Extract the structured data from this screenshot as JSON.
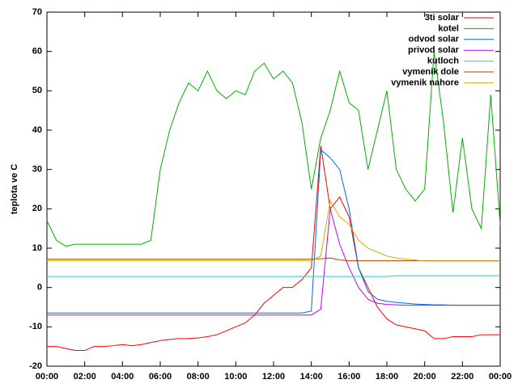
{
  "chart_data": {
    "type": "line",
    "y_label": "teplota ve C",
    "x": [
      0,
      0.5,
      1,
      1.5,
      2,
      2.5,
      3,
      3.5,
      4,
      4.5,
      5,
      5.5,
      6,
      6.5,
      7,
      7.5,
      8,
      8.5,
      9,
      9.5,
      10,
      10.5,
      11,
      11.5,
      12,
      12.5,
      13,
      13.5,
      14,
      14.5,
      15,
      15.5,
      16,
      16.5,
      17,
      17.5,
      18,
      18.5,
      19,
      19.5,
      20,
      20.5,
      21,
      21.5,
      22,
      22.5,
      23,
      23.5,
      24
    ],
    "xlim": [
      0,
      24
    ],
    "xticks": [
      {
        "value": 0,
        "label": "00:00"
      },
      {
        "value": 2,
        "label": "02:00"
      },
      {
        "value": 4,
        "label": "04:00"
      },
      {
        "value": 6,
        "label": "06:00"
      },
      {
        "value": 8,
        "label": "08:00"
      },
      {
        "value": 10,
        "label": "10:00"
      },
      {
        "value": 12,
        "label": "12:00"
      },
      {
        "value": 14,
        "label": "14:00"
      },
      {
        "value": 16,
        "label": "16:00"
      },
      {
        "value": 18,
        "label": "18:00"
      },
      {
        "value": 20,
        "label": "20:00"
      },
      {
        "value": 22,
        "label": "22:00"
      },
      {
        "value": 24,
        "label": "00:00"
      }
    ],
    "ylim": [
      -20,
      70
    ],
    "yticks": [
      -20,
      -10,
      0,
      10,
      20,
      30,
      40,
      50,
      60,
      70
    ],
    "grid": false,
    "legend": "top-right",
    "series": [
      {
        "name": "3ti solar",
        "color": "#ff0000",
        "values": [
          -15,
          -15,
          -15.5,
          -16,
          -16,
          -15,
          -15,
          -14.8,
          -14.5,
          -14.8,
          -14.5,
          -14,
          -13.5,
          -13.2,
          -13,
          -13,
          -12.8,
          -12.5,
          -12,
          -11,
          -10,
          -9,
          -7,
          -4,
          -2,
          0,
          0,
          2,
          5,
          36,
          20,
          23,
          18,
          5,
          0,
          -5,
          -8,
          -9.5,
          -10,
          -10.5,
          -11,
          -13,
          -13,
          -12.5,
          -12.5,
          -12.5,
          -12,
          -12,
          -12
        ]
      },
      {
        "name": "kotel",
        "color": "#00b000",
        "values": [
          17,
          12,
          10.5,
          11,
          11,
          11,
          11,
          11,
          11,
          11,
          11,
          12,
          30,
          40,
          47,
          52,
          50,
          55,
          50,
          48,
          50,
          49,
          55,
          57,
          53,
          55,
          52,
          42,
          25,
          38,
          45,
          55,
          47,
          45,
          30,
          40,
          50,
          30,
          25,
          22,
          25,
          60,
          42,
          19,
          38,
          20,
          15,
          49,
          16
        ]
      },
      {
        "name": "odvod solar",
        "color": "#0066ee",
        "values": [
          -6.5,
          -6.5,
          -6.5,
          -6.5,
          -6.5,
          -6.5,
          -6.5,
          -6.5,
          -6.5,
          -6.5,
          -6.5,
          -6.5,
          -6.5,
          -6.5,
          -6.5,
          -6.5,
          -6.5,
          -6.5,
          -6.5,
          -6.5,
          -6.5,
          -6.5,
          -6.5,
          -6.5,
          -6.5,
          -6.5,
          -6.5,
          -6.5,
          -6,
          35,
          33,
          30,
          20,
          5,
          -1,
          -3,
          -3.5,
          -3.8,
          -4,
          -4.2,
          -4.3,
          -4.4,
          -4.4,
          -4.5,
          -4.5,
          -4.5,
          -4.5,
          -4.5,
          -4.5
        ]
      },
      {
        "name": "privod solar",
        "color": "#c000ff",
        "values": [
          -7,
          -7,
          -7,
          -7,
          -7,
          -7,
          -7,
          -7,
          -7,
          -7,
          -7,
          -7,
          -7,
          -7,
          -7,
          -7,
          -7,
          -7,
          -7,
          -7,
          -7,
          -7,
          -7,
          -7,
          -7,
          -7,
          -7,
          -7,
          -7,
          -5.5,
          20,
          11,
          5,
          0,
          -3,
          -4,
          -4.3,
          -4.4,
          -4.5,
          -4.5,
          -4.5,
          -4.5,
          -4.5,
          -4.5,
          -4.5,
          -4.5,
          -4.5,
          -4.5,
          -4.5
        ]
      },
      {
        "name": "kutloch",
        "color": "#00dddd",
        "values": [
          2.8,
          2.8,
          2.8,
          2.8,
          2.8,
          2.8,
          2.8,
          2.8,
          2.8,
          2.8,
          2.8,
          2.8,
          2.8,
          2.8,
          2.8,
          2.8,
          2.8,
          2.8,
          2.8,
          2.8,
          2.8,
          2.8,
          2.8,
          2.8,
          2.8,
          2.8,
          2.8,
          2.8,
          2.8,
          2.8,
          2.8,
          2.8,
          2.8,
          2.8,
          2.8,
          2.8,
          2.8,
          3,
          3,
          3,
          3,
          3,
          3,
          3,
          3,
          3,
          3,
          3,
          3
        ]
      },
      {
        "name": "vymenik dole",
        "color": "#b04000",
        "values": [
          7.2,
          7.2,
          7.2,
          7.2,
          7.2,
          7.2,
          7.2,
          7.2,
          7.2,
          7.2,
          7.2,
          7.2,
          7.2,
          7.2,
          7.2,
          7.2,
          7.2,
          7.2,
          7.2,
          7.2,
          7.2,
          7.2,
          7.2,
          7.2,
          7.2,
          7.2,
          7.2,
          7.2,
          7.2,
          7.3,
          7.5,
          7,
          6.8,
          6.8,
          6.8,
          6.8,
          6.8,
          6.8,
          6.8,
          6.8,
          6.8,
          6.8,
          6.8,
          6.8,
          6.8,
          6.8,
          6.8,
          6.8,
          6.8
        ]
      },
      {
        "name": "vymenik nahore",
        "color": "#c8b400",
        "values": [
          6.8,
          6.8,
          6.8,
          6.8,
          6.8,
          6.8,
          6.8,
          6.8,
          6.8,
          6.8,
          6.8,
          6.8,
          6.8,
          6.8,
          6.8,
          6.8,
          6.8,
          6.8,
          6.8,
          6.8,
          6.8,
          6.8,
          6.8,
          6.8,
          6.8,
          6.8,
          6.8,
          6.8,
          6.8,
          8,
          22,
          18,
          16,
          12,
          10,
          9,
          8,
          7.5,
          7.2,
          7,
          6.7,
          6.7,
          6.7,
          6.7,
          6.7,
          6.7,
          6.7,
          6.7,
          6.7
        ]
      }
    ]
  }
}
